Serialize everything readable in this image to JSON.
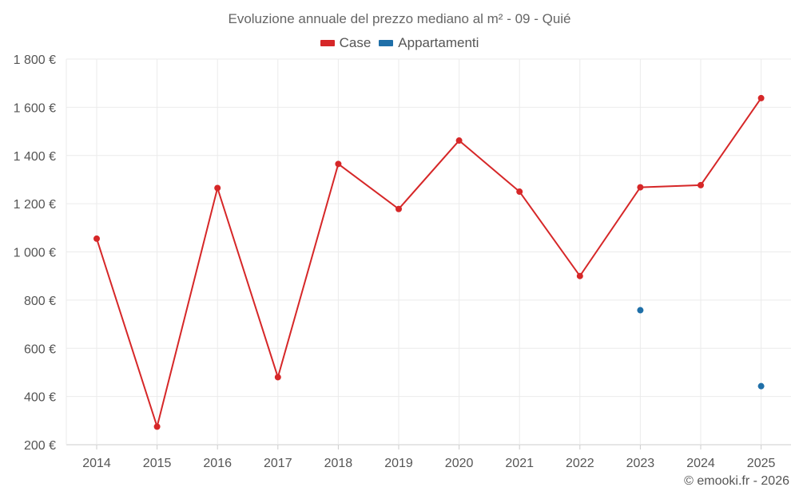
{
  "chart_data": {
    "type": "line",
    "title": "Evoluzione annuale del prezzo mediano al m² - 09 - Quié",
    "categories": [
      "2014",
      "2015",
      "2016",
      "2017",
      "2018",
      "2019",
      "2020",
      "2021",
      "2022",
      "2023",
      "2024",
      "2025"
    ],
    "y_ticks": [
      "200 €",
      "400 €",
      "600 €",
      "800 €",
      "1 000 €",
      "1 200 €",
      "1 400 €",
      "1 600 €",
      "1 800 €"
    ],
    "y_tick_values": [
      200,
      400,
      600,
      800,
      1000,
      1200,
      1400,
      1600,
      1800
    ],
    "ylim": [
      200,
      1800
    ],
    "grid": true,
    "legend_position": "top-center",
    "series": [
      {
        "name": "Case",
        "color": "#d62728",
        "values": [
          1055,
          275,
          1265,
          480,
          1365,
          1178,
          1462,
          1250,
          900,
          1268,
          1277,
          1638
        ]
      },
      {
        "name": "Appartamenti",
        "color": "#1f6fa8",
        "values": [
          null,
          null,
          null,
          null,
          null,
          null,
          null,
          null,
          null,
          758,
          null,
          443
        ]
      }
    ]
  },
  "credit": "© emooki.fr - 2026"
}
